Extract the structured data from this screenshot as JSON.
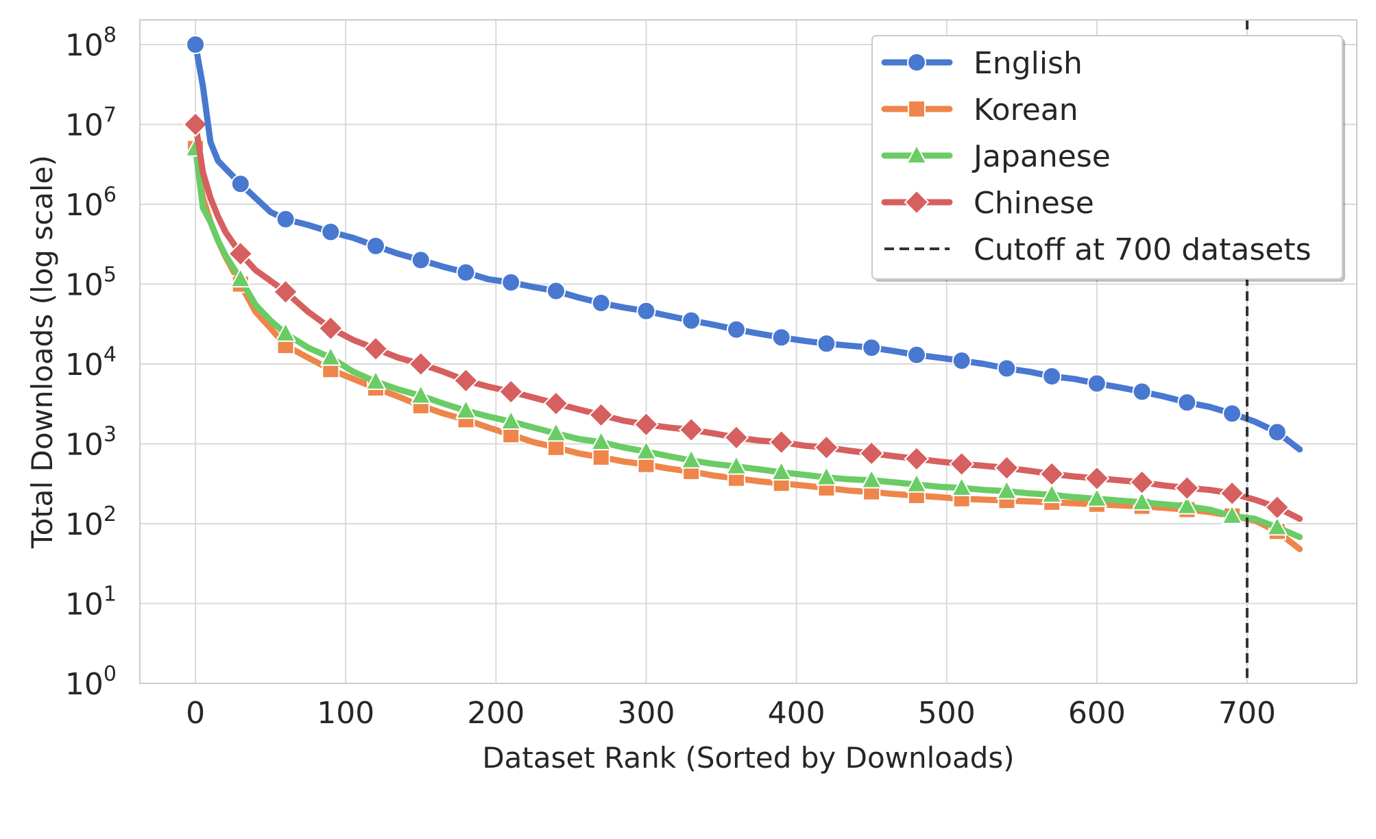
{
  "chart_data": {
    "type": "line",
    "title": "",
    "xlabel": "Dataset Rank (Sorted by Downloads)",
    "ylabel": "Total Downloads (log scale)",
    "xlim": [
      -37,
      773
    ],
    "ylim": [
      1,
      100000000
    ],
    "y_scale": "log",
    "x_ticks": [
      0,
      100,
      200,
      300,
      400,
      500,
      600,
      700
    ],
    "y_ticks": [
      {
        "base": "10",
        "exp": "0",
        "value": 1
      },
      {
        "base": "10",
        "exp": "1",
        "value": 10
      },
      {
        "base": "10",
        "exp": "2",
        "value": 100
      },
      {
        "base": "10",
        "exp": "3",
        "value": 1000
      },
      {
        "base": "10",
        "exp": "4",
        "value": 10000
      },
      {
        "base": "10",
        "exp": "5",
        "value": 100000
      },
      {
        "base": "10",
        "exp": "6",
        "value": 1000000
      },
      {
        "base": "10",
        "exp": "7",
        "value": 10000000
      },
      {
        "base": "10",
        "exp": "8",
        "value": 100000000
      }
    ],
    "grid": true,
    "legend_position": "top-right",
    "cutoff": {
      "x": 700,
      "label": "Cutoff at 700 datasets",
      "color": "#333333"
    },
    "series": [
      {
        "name": "English",
        "color": "#4878d0",
        "marker": "circle",
        "x": [
          0,
          5,
          10,
          15,
          20,
          30,
          40,
          50,
          60,
          75,
          90,
          105,
          120,
          135,
          150,
          165,
          180,
          195,
          210,
          225,
          240,
          255,
          270,
          285,
          300,
          315,
          330,
          345,
          360,
          375,
          390,
          405,
          420,
          435,
          450,
          465,
          480,
          495,
          510,
          525,
          540,
          555,
          570,
          585,
          600,
          615,
          630,
          645,
          660,
          675,
          690,
          705,
          720,
          735
        ],
        "y": [
          100000000,
          30000000,
          6000000,
          3500000,
          2800000,
          1800000,
          1200000,
          800000,
          650000,
          550000,
          450000,
          380000,
          300000,
          240000,
          200000,
          165000,
          140000,
          115000,
          105000,
          92000,
          82000,
          68000,
          58000,
          51000,
          46000,
          40000,
          35000,
          31000,
          27000,
          24000,
          21500,
          19500,
          18000,
          17000,
          16000,
          14500,
          13000,
          12000,
          11000,
          10000,
          8800,
          8000,
          7000,
          6500,
          5700,
          5100,
          4500,
          3900,
          3300,
          2900,
          2400,
          1900,
          1400,
          850
        ],
        "marker_x": [
          0,
          30,
          60,
          90,
          120,
          150,
          180,
          210,
          240,
          270,
          300,
          330,
          360,
          390,
          420,
          450,
          480,
          510,
          540,
          570,
          600,
          630,
          660,
          690,
          720
        ]
      },
      {
        "name": "Korean",
        "color": "#ee854a",
        "marker": "square",
        "x": [
          0,
          5,
          10,
          15,
          20,
          30,
          40,
          50,
          60,
          75,
          90,
          105,
          120,
          135,
          150,
          165,
          180,
          195,
          210,
          225,
          240,
          255,
          270,
          285,
          300,
          315,
          330,
          345,
          360,
          375,
          390,
          405,
          420,
          435,
          450,
          465,
          480,
          495,
          510,
          525,
          540,
          555,
          570,
          585,
          600,
          615,
          630,
          645,
          660,
          675,
          690,
          705,
          720,
          735
        ],
        "y": [
          5000000,
          1200000,
          600000,
          350000,
          220000,
          100000,
          45000,
          28000,
          17000,
          12000,
          8500,
          6500,
          5000,
          3900,
          3000,
          2400,
          2000,
          1600,
          1300,
          1050,
          900,
          760,
          680,
          600,
          550,
          490,
          450,
          400,
          370,
          340,
          320,
          300,
          280,
          260,
          250,
          235,
          225,
          215,
          205,
          200,
          195,
          190,
          185,
          180,
          175,
          170,
          165,
          158,
          150,
          140,
          125,
          110,
          80,
          48
        ],
        "marker_x": [
          0,
          30,
          60,
          90,
          120,
          150,
          180,
          210,
          240,
          270,
          300,
          330,
          360,
          390,
          420,
          450,
          480,
          510,
          540,
          570,
          600,
          630,
          660,
          690,
          720
        ]
      },
      {
        "name": "Japanese",
        "color": "#6acc64",
        "marker": "triangle",
        "x": [
          0,
          5,
          10,
          15,
          20,
          30,
          40,
          50,
          60,
          75,
          90,
          105,
          120,
          135,
          150,
          165,
          180,
          195,
          210,
          225,
          240,
          255,
          270,
          285,
          300,
          315,
          330,
          345,
          360,
          375,
          390,
          405,
          420,
          435,
          450,
          465,
          480,
          495,
          510,
          525,
          540,
          555,
          570,
          585,
          600,
          615,
          630,
          645,
          660,
          675,
          690,
          705,
          720,
          735
        ],
        "y": [
          5000000,
          900000,
          600000,
          350000,
          230000,
          115000,
          55000,
          35000,
          24000,
          16000,
          12000,
          8000,
          6000,
          4800,
          4000,
          3200,
          2600,
          2200,
          1900,
          1600,
          1350,
          1150,
          1050,
          900,
          800,
          700,
          620,
          560,
          520,
          480,
          440,
          410,
          380,
          360,
          350,
          330,
          310,
          290,
          280,
          265,
          255,
          240,
          230,
          215,
          205,
          195,
          185,
          175,
          165,
          150,
          125,
          115,
          90,
          68
        ],
        "marker_x": [
          0,
          30,
          60,
          90,
          120,
          150,
          180,
          210,
          240,
          270,
          300,
          330,
          360,
          390,
          420,
          450,
          480,
          510,
          540,
          570,
          600,
          630,
          660,
          690,
          720
        ]
      },
      {
        "name": "Chinese",
        "color": "#d65f5f",
        "marker": "diamond",
        "x": [
          0,
          5,
          10,
          15,
          20,
          30,
          40,
          50,
          60,
          75,
          90,
          105,
          120,
          135,
          150,
          165,
          180,
          195,
          210,
          225,
          240,
          255,
          270,
          285,
          300,
          315,
          330,
          345,
          360,
          375,
          390,
          405,
          420,
          435,
          450,
          465,
          480,
          495,
          510,
          525,
          540,
          555,
          570,
          585,
          600,
          615,
          630,
          645,
          660,
          675,
          690,
          705,
          720,
          735
        ],
        "y": [
          10000000,
          2500000,
          1200000,
          700000,
          450000,
          240000,
          150000,
          110000,
          80000,
          45000,
          28000,
          20000,
          15500,
          12000,
          10000,
          8000,
          6200,
          5200,
          4500,
          3800,
          3200,
          2700,
          2300,
          1950,
          1750,
          1600,
          1500,
          1350,
          1200,
          1100,
          1050,
          950,
          900,
          820,
          760,
          700,
          650,
          600,
          560,
          530,
          500,
          460,
          420,
          390,
          370,
          350,
          330,
          300,
          280,
          265,
          240,
          200,
          160,
          115
        ],
        "marker_x": [
          0,
          30,
          60,
          90,
          120,
          150,
          180,
          210,
          240,
          270,
          300,
          330,
          360,
          390,
          420,
          450,
          480,
          510,
          540,
          570,
          600,
          630,
          660,
          690,
          720
        ]
      }
    ]
  }
}
